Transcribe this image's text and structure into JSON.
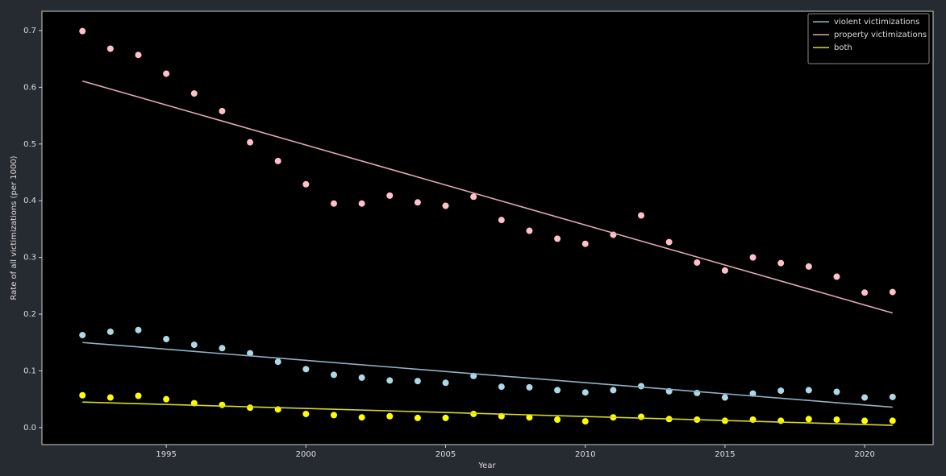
{
  "chart_data": {
    "type": "scatter",
    "xlabel": "Year",
    "ylabel": "Rate of all victimizations (per 1000)",
    "x": [
      1992,
      1993,
      1994,
      1995,
      1996,
      1997,
      1998,
      1999,
      2000,
      2001,
      2002,
      2003,
      2004,
      2005,
      2006,
      2007,
      2008,
      2009,
      2010,
      2011,
      2012,
      2013,
      2014,
      2015,
      2016,
      2017,
      2018,
      2019,
      2020,
      2021
    ],
    "trend_x": [
      1992,
      2021
    ],
    "series": [
      {
        "name": "violent victimizations",
        "color": "#8fb3c4",
        "marker_color": "#add8e6",
        "values": [
          0.163,
          0.169,
          0.172,
          0.156,
          0.146,
          0.14,
          0.131,
          0.116,
          0.103,
          0.093,
          0.088,
          0.083,
          0.082,
          0.079,
          0.091,
          0.072,
          0.071,
          0.066,
          0.062,
          0.066,
          0.073,
          0.064,
          0.061,
          0.053,
          0.06,
          0.065,
          0.066,
          0.063,
          0.053,
          0.054
        ],
        "trend": [
          0.15,
          0.036
        ]
      },
      {
        "name": "property victimizations",
        "color": "#e0a8b2",
        "marker_color": "#ffc0cb",
        "values": [
          0.699,
          0.668,
          0.657,
          0.624,
          0.589,
          0.558,
          0.503,
          0.47,
          0.429,
          0.395,
          0.395,
          0.409,
          0.397,
          0.391,
          0.407,
          0.366,
          0.347,
          0.333,
          0.324,
          0.34,
          0.374,
          0.327,
          0.291,
          0.277,
          0.3,
          0.29,
          0.284,
          0.266,
          0.238,
          0.239
        ],
        "trend": [
          0.611,
          0.202
        ]
      },
      {
        "name": "both",
        "color": "#d8d82c",
        "marker_color": "#ffff00",
        "values": [
          0.057,
          0.053,
          0.056,
          0.05,
          0.043,
          0.04,
          0.035,
          0.032,
          0.024,
          0.022,
          0.018,
          0.02,
          0.017,
          0.017,
          0.024,
          0.02,
          0.018,
          0.014,
          0.011,
          0.018,
          0.019,
          0.015,
          0.014,
          0.012,
          0.014,
          0.012,
          0.015,
          0.014,
          0.012,
          0.012
        ],
        "trend": [
          0.045,
          0.004
        ]
      }
    ],
    "xlim": [
      1990.55,
      2022.45
    ],
    "ylim": [
      -0.03,
      0.734
    ],
    "xticks": [
      1995,
      2000,
      2005,
      2010,
      2015,
      2020
    ],
    "yticks": [
      {
        "value": 0,
        "label": "0.0"
      },
      0.1,
      0.2,
      0.3,
      0.4,
      0.5,
      0.6,
      0.7
    ],
    "legend": "upper right"
  }
}
